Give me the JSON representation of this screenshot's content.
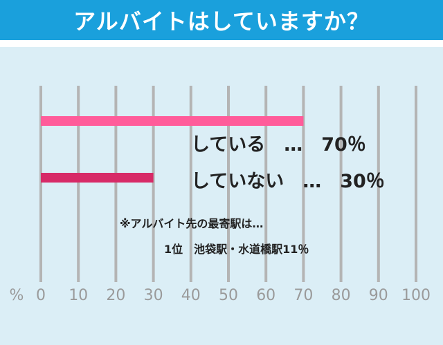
{
  "title": "アルバイトはしていますか？",
  "chart_data": {
    "type": "bar",
    "orientation": "horizontal",
    "categories": [
      "している",
      "していない"
    ],
    "values": [
      70,
      30
    ],
    "data_labels": [
      "している　…　70％",
      "していない　…　30％"
    ],
    "bar_colors": [
      "#ff5c9a",
      "#d72a67"
    ],
    "unit_label": "%",
    "xlim": [
      0,
      100
    ],
    "xticks": [
      0,
      10,
      20,
      30,
      40,
      50,
      60,
      70,
      80,
      90,
      100
    ],
    "grid": true,
    "notes": [
      "※アルバイト先の最寄駅は…",
      "1位　池袋駅・水道橋駅11％"
    ]
  }
}
